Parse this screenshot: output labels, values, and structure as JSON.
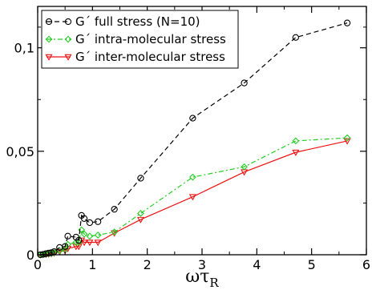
{
  "chart_data": {
    "type": "line",
    "xlabel": "ωτ",
    "xlabel_sub": "R",
    "ylabel": "",
    "xlim": [
      0,
      6
    ],
    "ylim": [
      0,
      0.12
    ],
    "x_ticks": [
      0,
      1,
      2,
      3,
      4,
      5,
      6
    ],
    "x_tick_labels": [
      "0",
      "1",
      "2",
      "3",
      "4",
      "5",
      "6"
    ],
    "y_ticks": [
      0,
      0.05,
      0.1
    ],
    "y_tick_labels": [
      "0",
      "0,05",
      "0,1"
    ],
    "grid": false,
    "legend_position": "top-left",
    "series": [
      {
        "name": "G´ full stress (N=10)",
        "color": "#000000",
        "line_style": "dashed",
        "marker": "circle",
        "x": [
          0.05,
          0.1,
          0.15,
          0.2,
          0.25,
          0.3,
          0.4,
          0.5,
          0.55,
          0.7,
          0.75,
          0.8,
          0.85,
          0.95,
          1.1,
          1.4,
          1.88,
          2.83,
          3.77,
          4.71,
          5.65
        ],
        "y": [
          0.0,
          0.0002,
          0.0005,
          0.0008,
          0.001,
          0.0015,
          0.0035,
          0.004,
          0.009,
          0.0085,
          0.007,
          0.019,
          0.0175,
          0.0155,
          0.016,
          0.022,
          0.037,
          0.066,
          0.083,
          0.105,
          0.112
        ]
      },
      {
        "name": "G´ intra-molecular stress",
        "color": "#22cc22",
        "line_style": "dashdot",
        "marker": "diamond",
        "x": [
          0.05,
          0.1,
          0.15,
          0.2,
          0.25,
          0.3,
          0.4,
          0.5,
          0.55,
          0.7,
          0.75,
          0.8,
          0.85,
          0.95,
          1.1,
          1.4,
          1.88,
          2.83,
          3.77,
          4.71,
          5.65
        ],
        "y": [
          0.0,
          0.0001,
          0.0003,
          0.0005,
          0.0007,
          0.001,
          0.002,
          0.0025,
          0.005,
          0.006,
          0.006,
          0.012,
          0.01,
          0.009,
          0.0095,
          0.011,
          0.02,
          0.0375,
          0.0425,
          0.055,
          0.0565
        ]
      },
      {
        "name": "G´ inter-molecular stress",
        "color": "#ee1111",
        "line_style": "solid",
        "marker": "triangle-down",
        "x": [
          0.05,
          0.1,
          0.15,
          0.2,
          0.25,
          0.3,
          0.4,
          0.5,
          0.55,
          0.7,
          0.75,
          0.8,
          0.85,
          0.95,
          1.1,
          1.4,
          1.88,
          2.83,
          3.77,
          4.71,
          5.65
        ],
        "y": [
          0.0,
          0.0001,
          0.0002,
          0.0003,
          0.0005,
          0.0008,
          0.0015,
          0.002,
          0.003,
          0.004,
          0.004,
          0.007,
          0.006,
          0.006,
          0.006,
          0.0105,
          0.017,
          0.028,
          0.04,
          0.0495,
          0.055
        ]
      }
    ]
  }
}
